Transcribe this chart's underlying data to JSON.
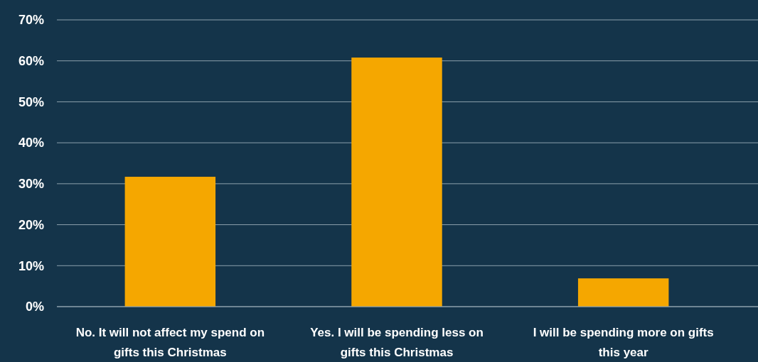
{
  "chart_data": {
    "type": "bar",
    "categories": [
      "No. It will not affect my spend on gifts this Christmas",
      "Yes. I will be spending less on gifts this Christmas",
      "I will be spending more on gifts this year"
    ],
    "values": [
      31.7,
      60.8,
      6.9
    ],
    "color": "#f5a700",
    "ylim": [
      0,
      70
    ],
    "yticks": [
      {
        "value": 0,
        "label": "0%"
      },
      {
        "value": 10,
        "label": "10%"
      },
      {
        "value": 20,
        "label": "20%"
      },
      {
        "value": 30,
        "label": "30%"
      },
      {
        "value": 40,
        "label": "40%"
      },
      {
        "value": 50,
        "label": "50%"
      },
      {
        "value": 60,
        "label": "60%"
      },
      {
        "value": 70,
        "label": "70%"
      }
    ],
    "grid": "y"
  }
}
